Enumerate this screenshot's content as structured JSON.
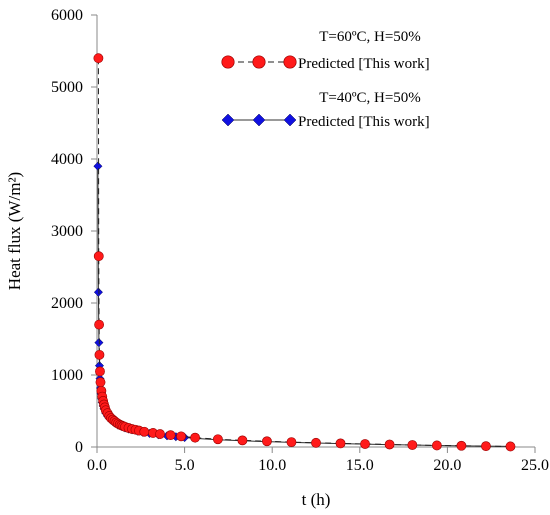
{
  "chart_data": {
    "type": "scatter",
    "xlabel": "t (h)",
    "ylabel": "Heat flux (W/m²)",
    "xlim": [
      0,
      25
    ],
    "ylim": [
      0,
      6000
    ],
    "x_ticks": [
      "0.0",
      "5.0",
      "10.0",
      "15.0",
      "20.0",
      "25.0"
    ],
    "y_ticks": [
      "0",
      "1000",
      "2000",
      "3000",
      "4000",
      "5000",
      "6000"
    ],
    "grid": false,
    "legend_position": "top-right",
    "series": [
      {
        "legend_title": "T=60ºC, H=50%",
        "name": "Predicted [This work]",
        "marker": "circle",
        "color": "#ff1a1a",
        "x": [
          0.08,
          0.1,
          0.12,
          0.14,
          0.17,
          0.2,
          0.25,
          0.3,
          0.35,
          0.4,
          0.45,
          0.5,
          0.6,
          0.7,
          0.8,
          0.9,
          1.0,
          1.1,
          1.2,
          1.3,
          1.4,
          1.5,
          1.6,
          1.8,
          2.0,
          2.2,
          2.4,
          2.7,
          3.2,
          3.6,
          4.2,
          4.8,
          5.6,
          6.9,
          8.3,
          9.7,
          11.1,
          12.5,
          13.9,
          15.3,
          16.7,
          18.0,
          19.4,
          20.8,
          22.2,
          23.6
        ],
        "y": [
          5400,
          2650,
          1700,
          1280,
          1050,
          900,
          780,
          700,
          640,
          590,
          550,
          510,
          470,
          430,
          400,
          380,
          360,
          340,
          325,
          310,
          300,
          290,
          280,
          265,
          250,
          240,
          228,
          212,
          195,
          180,
          165,
          148,
          130,
          108,
          92,
          80,
          68,
          58,
          50,
          42,
          35,
          28,
          22,
          17,
          12,
          8
        ]
      },
      {
        "legend_title": "T=40ºC, H=50%",
        "name": "Predicted [This work]",
        "marker": "diamond",
        "color": "#1010e0",
        "x": [
          0.05,
          0.08,
          0.11,
          0.14,
          0.17,
          0.2,
          0.23,
          0.27,
          0.3,
          0.35,
          0.4,
          0.5,
          0.6,
          0.7,
          0.8,
          0.9,
          1.0,
          1.2,
          1.4,
          1.6,
          1.8,
          2.0,
          2.3,
          2.6,
          3.0,
          3.5,
          4.0,
          4.5,
          5.0,
          5.6,
          6.9,
          8.3,
          9.7,
          11.1,
          12.5,
          13.9,
          15.3,
          16.7,
          18.0,
          19.4,
          20.8,
          22.2,
          23.6
        ],
        "y": [
          3900,
          2150,
          1450,
          1130,
          950,
          820,
          740,
          670,
          620,
          570,
          530,
          470,
          430,
          400,
          375,
          355,
          335,
          305,
          285,
          265,
          250,
          238,
          220,
          205,
          188,
          170,
          155,
          143,
          132,
          120,
          100,
          86,
          74,
          64,
          55,
          47,
          40,
          33,
          27,
          21,
          16,
          12,
          8
        ]
      }
    ]
  }
}
